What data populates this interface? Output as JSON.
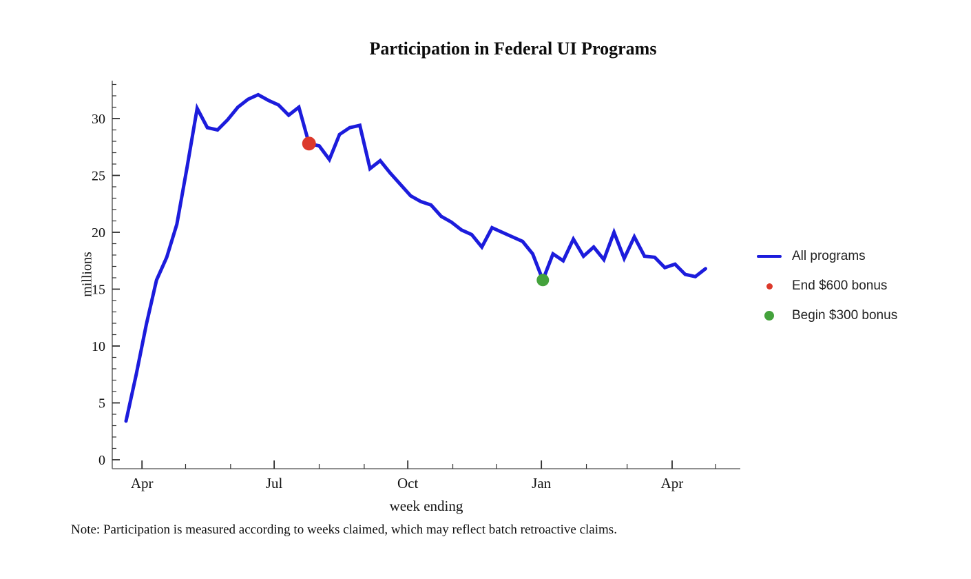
{
  "title": "Participation in Federal UI Programs",
  "note": "Note: Participation is measured according to weeks claimed, which may reflect batch retroactive claims.",
  "chart_data": {
    "type": "line",
    "title": "Participation in Federal UI Programs",
    "xlabel": "week ending",
    "ylabel": "millions",
    "grid": false,
    "legend_position": "right",
    "ylim": [
      0,
      33
    ],
    "y_ticks": [
      0,
      5,
      10,
      15,
      20,
      25,
      30
    ],
    "y_minor_step": 1,
    "x_tick_labels": [
      "Apr",
      "Jul",
      "Oct",
      "Jan",
      "Apr"
    ],
    "x_ticks": [
      {
        "date": "2020-04-01",
        "label": "Apr",
        "major": true
      },
      {
        "date": "2020-05-01",
        "major": false
      },
      {
        "date": "2020-06-01",
        "major": false
      },
      {
        "date": "2020-07-01",
        "label": "Jul",
        "major": true
      },
      {
        "date": "2020-08-01",
        "major": false
      },
      {
        "date": "2020-09-01",
        "major": false
      },
      {
        "date": "2020-10-01",
        "label": "Oct",
        "major": true
      },
      {
        "date": "2020-11-01",
        "major": false
      },
      {
        "date": "2020-12-01",
        "major": false
      },
      {
        "date": "2021-01-01",
        "label": "Jan",
        "major": true
      },
      {
        "date": "2021-02-01",
        "major": false
      },
      {
        "date": "2021-03-01",
        "major": false
      },
      {
        "date": "2021-04-01",
        "label": "Apr",
        "major": true
      },
      {
        "date": "2021-05-01",
        "major": false
      }
    ],
    "x_start_date": "2020-03-21",
    "series": [
      {
        "name": "All programs",
        "color": "#1c1cdc",
        "weeks": [
          "2020-03-21",
          "2020-03-28",
          "2020-04-04",
          "2020-04-11",
          "2020-04-18",
          "2020-04-25",
          "2020-05-02",
          "2020-05-09",
          "2020-05-16",
          "2020-05-23",
          "2020-05-30",
          "2020-06-06",
          "2020-06-13",
          "2020-06-20",
          "2020-06-27",
          "2020-07-04",
          "2020-07-11",
          "2020-07-18",
          "2020-07-25",
          "2020-08-01",
          "2020-08-08",
          "2020-08-15",
          "2020-08-22",
          "2020-08-29",
          "2020-09-05",
          "2020-09-12",
          "2020-09-19",
          "2020-09-26",
          "2020-10-03",
          "2020-10-10",
          "2020-10-17",
          "2020-10-24",
          "2020-10-31",
          "2020-11-07",
          "2020-11-14",
          "2020-11-21",
          "2020-11-28",
          "2020-12-05",
          "2020-12-12",
          "2020-12-19",
          "2020-12-26",
          "2021-01-02",
          "2021-01-09",
          "2021-01-16",
          "2021-01-23",
          "2021-01-30",
          "2021-02-06",
          "2021-02-13",
          "2021-02-20",
          "2021-02-27",
          "2021-03-06",
          "2021-03-13",
          "2021-03-20",
          "2021-03-27",
          "2021-04-03",
          "2021-04-10",
          "2021-04-17",
          "2021-04-24"
        ],
        "values": [
          3.4,
          7.5,
          11.9,
          15.8,
          17.8,
          20.7,
          25.7,
          30.9,
          29.2,
          29.0,
          29.9,
          31.0,
          31.7,
          32.1,
          31.6,
          31.2,
          30.3,
          31.0,
          27.8,
          27.6,
          26.4,
          28.6,
          29.2,
          29.4,
          25.6,
          26.3,
          25.2,
          24.2,
          23.2,
          22.7,
          22.4,
          21.4,
          20.9,
          20.2,
          19.8,
          18.7,
          20.4,
          20.0,
          19.6,
          19.2,
          18.1,
          15.8,
          18.1,
          17.5,
          19.4,
          17.9,
          18.7,
          17.6,
          20.0,
          17.7,
          19.6,
          17.9,
          17.8,
          16.9,
          17.2,
          16.3,
          16.1,
          16.8
        ]
      }
    ],
    "annotations": [
      {
        "label": "End $600 bonus",
        "date": "2020-07-25",
        "value": 27.8,
        "color": "#dc392b"
      },
      {
        "label": "Begin $300 bonus",
        "date": "2021-01-02",
        "value": 15.8,
        "color": "#44a23c"
      }
    ],
    "legend": [
      {
        "label": "All programs",
        "marker": "line",
        "color": "#1c1cdc"
      },
      {
        "label": "End $600 bonus",
        "marker": "dot-small",
        "color": "#dc392b"
      },
      {
        "label": "Begin $300 bonus",
        "marker": "dot-large",
        "color": "#44a23c"
      }
    ],
    "axis_color": "#6b6b6b",
    "tick_color": "#2e2e2e",
    "label_color": "#111111"
  }
}
